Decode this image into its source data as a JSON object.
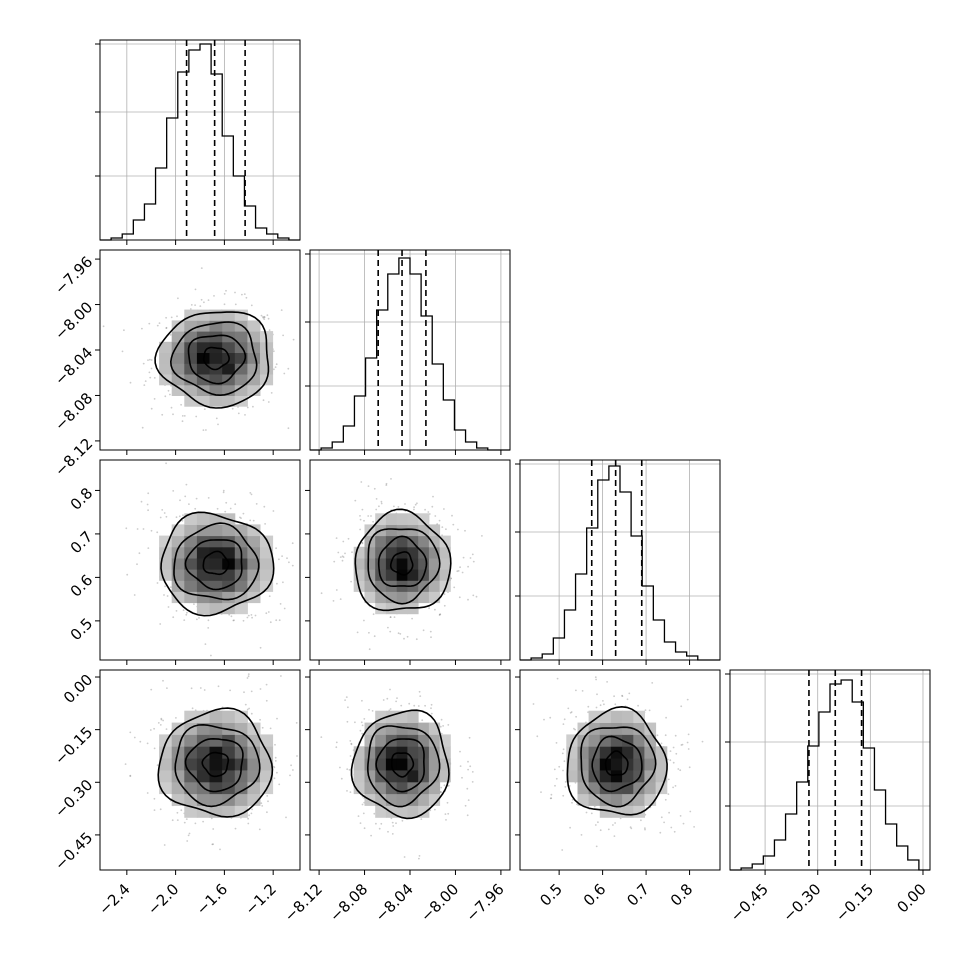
{
  "chart_data": {
    "type": "corner",
    "n_params": 4,
    "ranges": [
      [
        -2.62,
        -0.98
      ],
      [
        -8.128,
        -7.952
      ],
      [
        0.41,
        0.87
      ],
      [
        -0.55,
        0.02
      ]
    ],
    "ticks": [
      [
        -2.4,
        -2.0,
        -1.6,
        -1.2
      ],
      [
        -8.12,
        -8.08,
        -8.04,
        -8.0,
        -7.96
      ],
      [
        0.5,
        0.6,
        0.7,
        0.8
      ],
      [
        -0.45,
        -0.3,
        -0.15,
        0.0
      ]
    ],
    "tick_labels": [
      [
        "−2.4",
        "−2.0",
        "−1.6",
        "−1.2"
      ],
      [
        "−8.12",
        "−8.08",
        "−8.04",
        "−8.00",
        "−7.96"
      ],
      [
        "0.5",
        "0.6",
        "0.7",
        "0.8"
      ],
      [
        "−0.45",
        "−0.30",
        "−0.15",
        "0.00"
      ]
    ],
    "y_label_params": [
      1,
      2,
      3
    ],
    "quantiles": [
      [
        -1.91,
        -1.68,
        -1.43
      ],
      [
        -8.068,
        -8.047,
        -8.026
      ],
      [
        0.575,
        0.63,
        0.69
      ],
      [
        -0.325,
        -0.25,
        -0.175
      ]
    ],
    "centers": [
      -1.67,
      -8.047,
      0.632,
      -0.248
    ],
    "sigmas": [
      0.23,
      0.021,
      0.057,
      0.075
    ],
    "histograms": [
      [
        0.0,
        0.01,
        0.03,
        0.1,
        0.18,
        0.36,
        0.61,
        0.84,
        0.95,
        0.98,
        0.83,
        0.52,
        0.32,
        0.17,
        0.06,
        0.03,
        0.01,
        0.0
      ],
      [
        0.0,
        0.01,
        0.04,
        0.12,
        0.27,
        0.46,
        0.7,
        0.88,
        0.96,
        0.88,
        0.67,
        0.43,
        0.25,
        0.1,
        0.04,
        0.01,
        0.0,
        0.0
      ],
      [
        0.0,
        0.01,
        0.03,
        0.11,
        0.25,
        0.43,
        0.66,
        0.9,
        0.97,
        0.84,
        0.62,
        0.37,
        0.2,
        0.09,
        0.04,
        0.02,
        0.0,
        0.0
      ],
      [
        0.0,
        0.01,
        0.03,
        0.07,
        0.15,
        0.28,
        0.44,
        0.62,
        0.79,
        0.93,
        0.95,
        0.84,
        0.61,
        0.4,
        0.23,
        0.12,
        0.05,
        0.0
      ]
    ],
    "contour_levels": [
      0.5,
      1.0,
      1.5,
      2.0
    ],
    "grid": true,
    "scatter": true
  }
}
